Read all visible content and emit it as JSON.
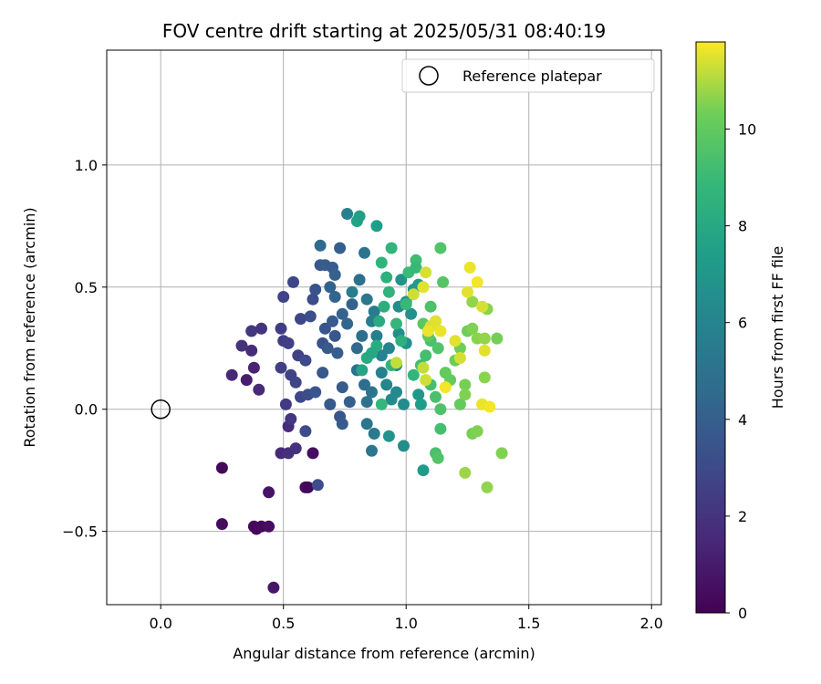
{
  "chart_data": {
    "type": "scatter",
    "title": "FOV centre drift starting at 2025/05/31 08:40:19",
    "xlabel": "Angular distance from reference (arcmin)",
    "ylabel": "Rotation from reference (arcmin)",
    "xlim": [
      -0.22,
      2.04
    ],
    "ylim": [
      -0.8,
      1.47
    ],
    "xticks": [
      0.0,
      0.5,
      1.0,
      1.5,
      2.0
    ],
    "xtick_labels": [
      "0.0",
      "0.5",
      "1.0",
      "1.5",
      "2.0"
    ],
    "yticks": [
      -0.5,
      0.0,
      0.5,
      1.0
    ],
    "ytick_labels": [
      "−0.5",
      "0.0",
      "0.5",
      "1.0"
    ],
    "grid": true,
    "legend": {
      "placement": "top-right",
      "entries": [
        "Reference platepar"
      ]
    },
    "reference_point": {
      "x": 0.0,
      "y": 0.0
    },
    "colorbar": {
      "label": "Hours from first FF file",
      "colormap": "viridis",
      "range": [
        0,
        11.8
      ],
      "ticks": [
        0,
        2,
        4,
        6,
        8,
        10
      ],
      "tick_labels": [
        "0",
        "2",
        "4",
        "6",
        "8",
        "10"
      ]
    },
    "series": [
      {
        "columns": [
          "x",
          "y",
          "hours"
        ],
        "points": [
          [
            0.25,
            -0.24,
            0.3
          ],
          [
            0.25,
            -0.47,
            0.4
          ],
          [
            0.38,
            -0.48,
            0.3
          ],
          [
            0.39,
            -0.49,
            0.2
          ],
          [
            0.41,
            -0.48,
            0.3
          ],
          [
            0.44,
            -0.48,
            0.5
          ],
          [
            0.44,
            -0.34,
            0.7
          ],
          [
            0.46,
            -0.73,
            0.8
          ],
          [
            0.59,
            -0.32,
            0.4
          ],
          [
            0.6,
            -0.32,
            0.3
          ],
          [
            0.62,
            -0.18,
            0.5
          ],
          [
            0.29,
            0.14,
            1.5
          ],
          [
            0.35,
            0.12,
            1.1
          ],
          [
            0.38,
            0.17,
            1.3
          ],
          [
            0.4,
            0.08,
            1.6
          ],
          [
            0.33,
            0.26,
            1.9
          ],
          [
            0.37,
            0.24,
            1.7
          ],
          [
            0.37,
            0.32,
            2.2
          ],
          [
            0.41,
            0.33,
            2.0
          ],
          [
            0.49,
            0.33,
            2.4
          ],
          [
            0.49,
            -0.18,
            1.6
          ],
          [
            0.52,
            -0.18,
            1.8
          ],
          [
            0.55,
            -0.16,
            1.9
          ],
          [
            0.52,
            -0.07,
            1.7
          ],
          [
            0.53,
            -0.04,
            2.1
          ],
          [
            0.51,
            0.02,
            2.3
          ],
          [
            0.5,
            0.28,
            2.4
          ],
          [
            0.52,
            0.27,
            2.6
          ],
          [
            0.49,
            0.17,
            2.5
          ],
          [
            0.53,
            0.14,
            2.7
          ],
          [
            0.55,
            0.11,
            2.8
          ],
          [
            0.56,
            0.22,
            2.6
          ],
          [
            0.59,
            0.2,
            3.0
          ],
          [
            0.57,
            0.05,
            2.9
          ],
          [
            0.6,
            0.06,
            3.2
          ],
          [
            0.59,
            -0.09,
            3.0
          ],
          [
            0.64,
            -0.31,
            3.1
          ],
          [
            0.5,
            0.46,
            2.7
          ],
          [
            0.54,
            0.52,
            2.8
          ],
          [
            0.57,
            0.37,
            2.9
          ],
          [
            0.61,
            0.38,
            3.3
          ],
          [
            0.62,
            0.45,
            3.1
          ],
          [
            0.63,
            0.49,
            3.4
          ],
          [
            0.63,
            0.07,
            3.5
          ],
          [
            0.66,
            0.15,
            3.6
          ],
          [
            0.66,
            0.27,
            3.4
          ],
          [
            0.68,
            0.25,
            3.7
          ],
          [
            0.67,
            0.33,
            3.5
          ],
          [
            0.7,
            0.36,
            3.8
          ],
          [
            0.71,
            0.3,
            3.6
          ],
          [
            0.72,
            0.23,
            3.9
          ],
          [
            0.69,
            0.02,
            3.7
          ],
          [
            0.73,
            -0.03,
            3.5
          ],
          [
            0.74,
            -0.06,
            3.8
          ],
          [
            0.74,
            0.09,
            3.9
          ],
          [
            0.77,
            0.03,
            4.0
          ],
          [
            0.65,
            0.59,
            3.7
          ],
          [
            0.67,
            0.59,
            3.9
          ],
          [
            0.7,
            0.58,
            3.8
          ],
          [
            0.71,
            0.55,
            4.1
          ],
          [
            0.73,
            0.66,
            4.0
          ],
          [
            0.69,
            0.5,
            4.2
          ],
          [
            0.71,
            0.46,
            4.3
          ],
          [
            0.74,
            0.39,
            4.1
          ],
          [
            0.76,
            0.35,
            4.4
          ],
          [
            0.78,
            0.43,
            4.2
          ],
          [
            0.65,
            0.67,
            4.6
          ],
          [
            0.8,
            0.25,
            4.6
          ],
          [
            0.82,
            0.3,
            4.8
          ],
          [
            0.8,
            0.16,
            4.9
          ],
          [
            0.83,
            0.1,
            4.7
          ],
          [
            0.84,
            0.03,
            5.0
          ],
          [
            0.86,
            0.07,
            5.1
          ],
          [
            0.84,
            -0.06,
            5.2
          ],
          [
            0.87,
            -0.1,
            5.4
          ],
          [
            0.86,
            -0.17,
            5.3
          ],
          [
            0.81,
            0.53,
            4.9
          ],
          [
            0.83,
            0.64,
            5.1
          ],
          [
            0.84,
            0.45,
            5.3
          ],
          [
            0.87,
            0.4,
            5.5
          ],
          [
            0.86,
            0.36,
            5.6
          ],
          [
            0.88,
            0.3,
            5.7
          ],
          [
            0.76,
            0.8,
            5.8
          ],
          [
            0.78,
            0.48,
            5.6
          ],
          [
            0.9,
            0.22,
            5.9
          ],
          [
            0.93,
            0.25,
            6.0
          ],
          [
            0.9,
            0.15,
            5.8
          ],
          [
            0.92,
            0.1,
            6.1
          ],
          [
            0.94,
            0.04,
            6.2
          ],
          [
            0.96,
            0.07,
            6.3
          ],
          [
            0.99,
            0.02,
            6.4
          ],
          [
            0.99,
            -0.15,
            6.5
          ],
          [
            0.93,
            -0.11,
            6.8
          ],
          [
            0.96,
            0.18,
            6.4
          ],
          [
            0.97,
            0.31,
            6.6
          ],
          [
            1.0,
            0.27,
            6.7
          ],
          [
            0.97,
            0.42,
            6.5
          ],
          [
            1.0,
            0.44,
            6.9
          ],
          [
            1.02,
            0.39,
            6.7
          ],
          [
            1.03,
            0.49,
            7.0
          ],
          [
            0.98,
            0.53,
            6.8
          ],
          [
            1.05,
            0.51,
            7.1
          ],
          [
            1.07,
            -0.25,
            7.2
          ],
          [
            1.05,
            0.06,
            7.0
          ],
          [
            1.06,
            0.02,
            7.3
          ],
          [
            0.88,
            0.75,
            7.4
          ],
          [
            0.8,
            0.77,
            7.6
          ],
          [
            0.81,
            0.79,
            7.5
          ],
          [
            0.82,
            0.16,
            7.8
          ],
          [
            0.84,
            0.21,
            8.0
          ],
          [
            0.88,
            0.26,
            8.2
          ],
          [
            0.86,
            0.23,
            7.9
          ],
          [
            0.89,
            0.36,
            8.1
          ],
          [
            0.91,
            0.42,
            8.3
          ],
          [
            0.92,
            0.54,
            8.4
          ],
          [
            0.9,
            0.6,
            8.6
          ],
          [
            0.94,
            0.66,
            8.7
          ],
          [
            0.93,
            0.48,
            8.5
          ],
          [
            0.96,
            0.35,
            8.8
          ],
          [
            0.98,
            0.28,
            8.4
          ],
          [
            1.0,
            0.43,
            8.9
          ],
          [
            1.01,
            0.56,
            9.0
          ],
          [
            1.04,
            0.61,
            9.1
          ],
          [
            1.04,
            0.58,
            8.9
          ],
          [
            1.03,
            0.14,
            8.7
          ],
          [
            0.9,
            0.02,
            8.8
          ],
          [
            0.94,
            0.18,
            8.6
          ],
          [
            1.06,
            0.18,
            9.2
          ],
          [
            1.08,
            0.22,
            9.3
          ],
          [
            1.1,
            0.28,
            9.4
          ],
          [
            1.12,
            0.36,
            9.5
          ],
          [
            1.13,
            0.25,
            9.6
          ],
          [
            1.1,
            0.1,
            9.3
          ],
          [
            1.12,
            0.05,
            9.4
          ],
          [
            1.14,
            0.0,
            9.5
          ],
          [
            1.14,
            0.66,
            9.6
          ],
          [
            1.15,
            0.52,
            9.7
          ],
          [
            1.1,
            0.42,
            9.5
          ],
          [
            1.12,
            -0.18,
            9.4
          ],
          [
            1.13,
            -0.2,
            9.6
          ],
          [
            1.14,
            -0.08,
            9.3
          ],
          [
            1.07,
            0.35,
            9.8
          ],
          [
            1.09,
            0.3,
            9.9
          ],
          [
            1.16,
            0.15,
            10.0
          ],
          [
            1.18,
            0.12,
            10.1
          ],
          [
            1.2,
            0.2,
            10.2
          ],
          [
            1.22,
            0.25,
            10.3
          ],
          [
            1.22,
            0.02,
            10.1
          ],
          [
            1.24,
            0.1,
            10.4
          ],
          [
            1.24,
            0.06,
            10.5
          ],
          [
            1.25,
            0.32,
            10.3
          ],
          [
            1.27,
            0.33,
            10.5
          ],
          [
            1.29,
            0.29,
            10.6
          ],
          [
            1.32,
            0.29,
            10.7
          ],
          [
            1.32,
            0.13,
            10.6
          ],
          [
            1.27,
            -0.1,
            10.4
          ],
          [
            1.29,
            -0.09,
            10.5
          ],
          [
            1.24,
            -0.26,
            10.8
          ],
          [
            1.33,
            -0.32,
            10.7
          ],
          [
            1.39,
            -0.18,
            10.5
          ],
          [
            1.37,
            0.29,
            10.4
          ],
          [
            1.33,
            0.41,
            10.6
          ],
          [
            1.27,
            0.44,
            10.7
          ],
          [
            1.07,
            0.17,
            11.2
          ],
          [
            1.08,
            0.12,
            11.3
          ],
          [
            1.1,
            0.34,
            11.4
          ],
          [
            1.12,
            0.36,
            11.5
          ],
          [
            1.14,
            0.32,
            11.6
          ],
          [
            1.03,
            0.47,
            11.3
          ],
          [
            1.07,
            0.5,
            11.5
          ],
          [
            1.08,
            0.56,
            11.4
          ],
          [
            1.09,
            0.32,
            11.6
          ],
          [
            1.16,
            0.09,
            11.7
          ],
          [
            1.2,
            0.28,
            11.5
          ],
          [
            1.22,
            0.21,
            11.4
          ],
          [
            1.26,
            0.58,
            11.6
          ],
          [
            1.29,
            0.52,
            11.7
          ],
          [
            1.31,
            0.42,
            11.4
          ],
          [
            1.32,
            0.24,
            11.5
          ],
          [
            1.31,
            0.02,
            11.6
          ],
          [
            1.34,
            0.01,
            11.7
          ],
          [
            1.25,
            0.48,
            11.5
          ],
          [
            0.96,
            0.19,
            11.2
          ]
        ]
      }
    ]
  }
}
